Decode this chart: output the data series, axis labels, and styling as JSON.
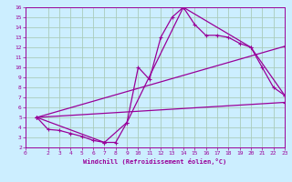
{
  "xlabel": "Windchill (Refroidissement éolien,°C)",
  "bg_color": "#cceeff",
  "grid_color": "#aaccbb",
  "line_color": "#990099",
  "xlim": [
    0,
    23
  ],
  "ylim": [
    2,
    16
  ],
  "xticks": [
    0,
    2,
    3,
    4,
    5,
    6,
    7,
    8,
    9,
    10,
    11,
    12,
    13,
    14,
    15,
    16,
    17,
    18,
    19,
    20,
    21,
    22,
    23
  ],
  "yticks": [
    2,
    3,
    4,
    5,
    6,
    7,
    8,
    9,
    10,
    11,
    12,
    13,
    14,
    15,
    16
  ],
  "line1_x": [
    1,
    2,
    3,
    4,
    5,
    6,
    7,
    8,
    9,
    10,
    11,
    12,
    13,
    14,
    15,
    16,
    17,
    18,
    19,
    20,
    21,
    22,
    23
  ],
  "line1_y": [
    5.0,
    3.8,
    3.7,
    3.4,
    3.1,
    2.7,
    2.5,
    2.5,
    4.5,
    10.0,
    8.8,
    13.0,
    15.0,
    16.0,
    14.3,
    13.2,
    13.2,
    13.0,
    12.4,
    12.0,
    10.0,
    8.0,
    7.2
  ],
  "line2_x": [
    1,
    23
  ],
  "line2_y": [
    5.0,
    6.5
  ],
  "line3_x": [
    1,
    23
  ],
  "line3_y": [
    5.0,
    12.1
  ],
  "line4_x": [
    1,
    7,
    9,
    14,
    20,
    23
  ],
  "line4_y": [
    5.0,
    2.5,
    4.5,
    16.0,
    12.0,
    7.2
  ]
}
